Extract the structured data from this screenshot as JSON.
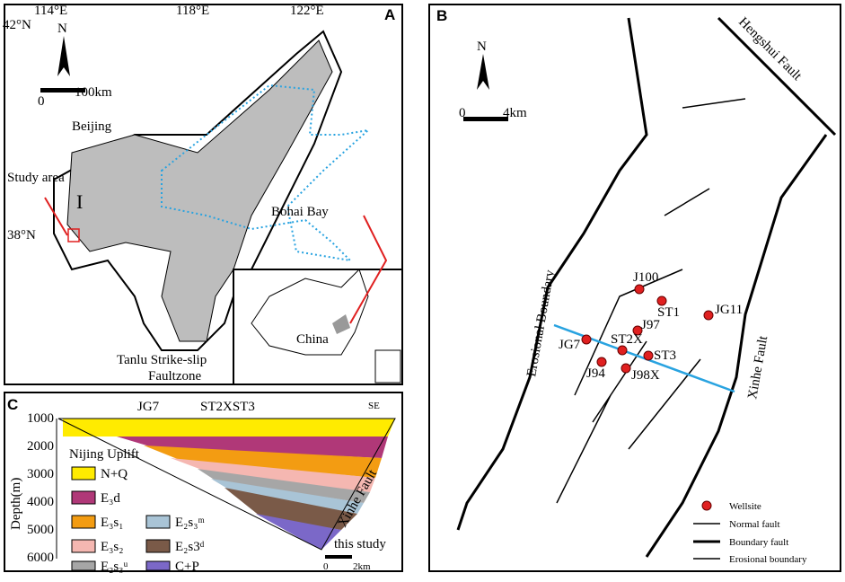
{
  "panel_a": {
    "label": "A",
    "lat_top": "42°N",
    "lon_1": "114°E",
    "lon_2": "118°E",
    "lon_3": "122°E",
    "north": "N",
    "scale_0": "0",
    "scale_end": "100km",
    "beijing": "Beijing",
    "study_area": "Study area",
    "lat_mid": "38°N",
    "region": "I",
    "bohai": "Bohai Bay",
    "china": "China",
    "tanlu_1": "Tanlu Strike-slip",
    "tanlu_2": "Faultzone"
  },
  "panel_b": {
    "label": "B",
    "hengshui": "Hengshui Fault",
    "north": "N",
    "scale_0": "0",
    "scale_end": "4km",
    "erosional": "Erosional Boundary",
    "xinhe": "Xinhe Fault",
    "wells": [
      "J100",
      "ST1",
      "JG11",
      "J97",
      "JG7",
      "ST2X",
      "ST3",
      "J94",
      "J98X"
    ],
    "legend": [
      "Wellsite",
      "Normal fault",
      "Boundary fault",
      "Erosional boundary"
    ]
  },
  "panel_c": {
    "label": "C",
    "axis_title": "Depth(m)",
    "ticks": [
      "1000",
      "2000",
      "3000",
      "4000",
      "5000",
      "6000"
    ],
    "well_1": "JG7",
    "well_2": "ST2XST3",
    "direction": "SE",
    "uplift": "Nijing Uplift",
    "xinhe": "Xinhe Fault",
    "this_study": "this study",
    "scale_0": "0",
    "scale_end": "2km",
    "legend": [
      "N+Q",
      "E₃d",
      "E₃s₁",
      "E₂s₃ᵐ",
      "E₃s₂",
      "E₂s3ᵈ",
      "E₂s₃ᵘ",
      "C+P"
    ]
  }
}
